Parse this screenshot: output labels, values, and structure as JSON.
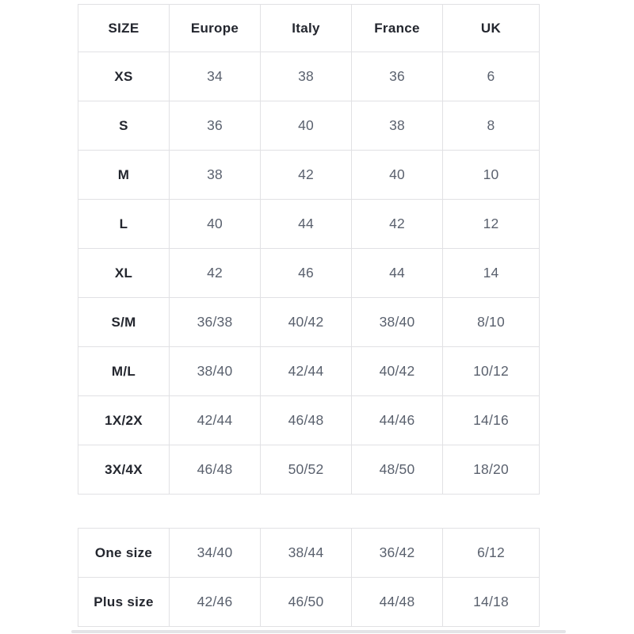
{
  "colors": {
    "background": "#ffffff",
    "border": "#e1e1e4",
    "header_text": "#23262e",
    "value_text": "#5a616e",
    "scrollbar_track": "#e4e4e7"
  },
  "size_table": {
    "columns": [
      "SIZE",
      "Europe",
      "Italy",
      "France",
      "UK"
    ],
    "rows": [
      {
        "label": "XS",
        "values": [
          "34",
          "38",
          "36",
          "6"
        ]
      },
      {
        "label": "S",
        "values": [
          "36",
          "40",
          "38",
          "8"
        ]
      },
      {
        "label": "M",
        "values": [
          "38",
          "42",
          "40",
          "10"
        ]
      },
      {
        "label": "L",
        "values": [
          "40",
          "44",
          "42",
          "12"
        ]
      },
      {
        "label": "XL",
        "values": [
          "42",
          "46",
          "44",
          "14"
        ]
      },
      {
        "label": "S/M",
        "values": [
          "36/38",
          "40/42",
          "38/40",
          "8/10"
        ]
      },
      {
        "label": "M/L",
        "values": [
          "38/40",
          "42/44",
          "40/42",
          "10/12"
        ]
      },
      {
        "label": "1X/2X",
        "values": [
          "42/44",
          "46/48",
          "44/46",
          "14/16"
        ]
      },
      {
        "label": "3X/4X",
        "values": [
          "46/48",
          "50/52",
          "48/50",
          "18/20"
        ]
      }
    ]
  },
  "special_size_table": {
    "rows": [
      {
        "label": "One size",
        "values": [
          "34/40",
          "38/44",
          "36/42",
          "6/12"
        ]
      },
      {
        "label": "Plus size",
        "values": [
          "42/46",
          "46/50",
          "44/48",
          "14/18"
        ]
      }
    ]
  }
}
